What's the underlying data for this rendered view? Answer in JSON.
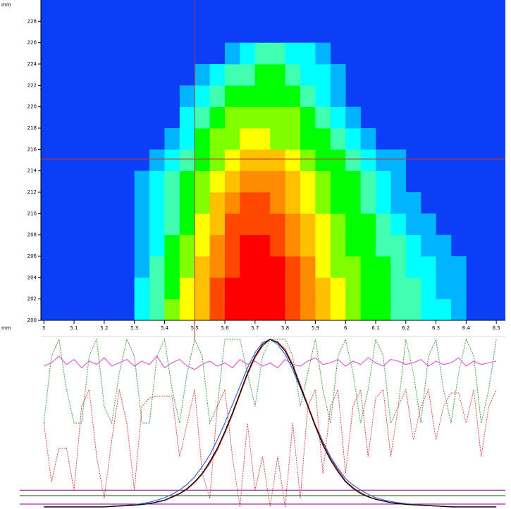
{
  "chart_data": [
    {
      "type": "heatmap",
      "x_unit": "mm",
      "y_unit": "mm",
      "xlim": [
        4.99,
        6.53
      ],
      "ylim": [
        200,
        230
      ],
      "xticks": [
        5,
        5.1,
        5.2,
        5.3,
        5.4,
        5.5,
        5.6,
        5.7,
        5.8,
        5.9,
        6,
        6.1,
        6.2,
        6.3,
        6.4,
        6.5
      ],
      "yticks": [
        200,
        202,
        204,
        206,
        208,
        210,
        212,
        214,
        216,
        218,
        220,
        222,
        224,
        226,
        228
      ],
      "background": "#0b3ff5",
      "colorscale": [
        "#0b3ff5",
        "#00b4ff",
        "#00ffff",
        "#40ffb0",
        "#00ff00",
        "#80ff00",
        "#ffff00",
        "#ffc000",
        "#ff8c00",
        "#ff4800",
        "#ff0000"
      ],
      "xbins": [
        5.3,
        5.35,
        5.4,
        5.45,
        5.5,
        5.55,
        5.6,
        5.65,
        5.7,
        5.75,
        5.8,
        5.85,
        5.9,
        5.95,
        6,
        6.05,
        6.1,
        6.15,
        6.2,
        6.25,
        6.3,
        6.35,
        6.4,
        6.45
      ],
      "ybins": [
        200,
        202,
        204,
        206,
        208,
        210,
        212,
        214,
        216,
        218,
        220,
        222,
        224,
        226
      ],
      "values": [
        [
          2,
          3,
          5,
          6,
          7,
          9,
          10,
          10,
          10,
          10,
          9,
          8,
          7,
          6,
          5,
          4,
          4,
          3,
          3,
          2,
          2,
          1,
          0
        ],
        [
          2,
          3,
          4,
          6,
          7,
          9,
          10,
          10,
          10,
          10,
          9,
          8,
          7,
          6,
          5,
          4,
          4,
          3,
          3,
          2,
          1,
          1,
          0
        ],
        [
          1,
          3,
          4,
          5,
          7,
          8,
          9,
          10,
          10,
          10,
          9,
          8,
          6,
          5,
          5,
          4,
          4,
          3,
          2,
          2,
          1,
          1,
          0
        ],
        [
          1,
          2,
          4,
          5,
          6,
          8,
          9,
          10,
          10,
          9,
          8,
          7,
          6,
          5,
          4,
          4,
          3,
          3,
          2,
          1,
          1,
          0,
          0
        ],
        [
          1,
          2,
          3,
          4,
          6,
          7,
          9,
          9,
          9,
          9,
          8,
          7,
          6,
          5,
          4,
          4,
          3,
          2,
          1,
          1,
          0,
          0,
          0
        ],
        [
          1,
          2,
          3,
          4,
          5,
          7,
          8,
          9,
          9,
          8,
          7,
          6,
          5,
          4,
          4,
          3,
          2,
          1,
          1,
          0,
          0,
          0,
          0
        ],
        [
          1,
          2,
          3,
          4,
          5,
          6,
          7,
          8,
          8,
          8,
          7,
          6,
          5,
          4,
          4,
          3,
          2,
          1,
          0,
          0,
          0,
          0,
          0
        ],
        [
          0,
          1,
          2,
          3,
          4,
          5,
          6,
          7,
          7,
          7,
          6,
          5,
          4,
          4,
          3,
          2,
          1,
          1,
          0,
          0,
          0,
          0,
          0
        ],
        [
          0,
          0,
          1,
          2,
          4,
          5,
          5,
          6,
          6,
          5,
          5,
          4,
          4,
          3,
          2,
          1,
          0,
          0,
          0,
          0,
          0,
          0,
          0
        ],
        [
          0,
          0,
          0,
          2,
          3,
          4,
          5,
          5,
          5,
          5,
          5,
          4,
          3,
          2,
          1,
          0,
          0,
          0,
          0,
          0,
          0,
          0,
          0
        ],
        [
          0,
          0,
          0,
          1,
          2,
          3,
          4,
          4,
          4,
          4,
          4,
          3,
          2,
          1,
          0,
          0,
          0,
          0,
          0,
          0,
          0,
          0,
          0
        ],
        [
          0,
          0,
          0,
          0,
          1,
          2,
          3,
          3,
          4,
          4,
          3,
          2,
          2,
          1,
          0,
          0,
          0,
          0,
          0,
          0,
          0,
          0,
          0
        ],
        [
          0,
          0,
          0,
          0,
          0,
          0,
          1,
          2,
          3,
          3,
          2,
          2,
          1,
          0,
          0,
          0,
          0,
          0,
          0,
          0,
          0,
          0,
          0
        ]
      ],
      "cursor": {
        "x": 5.5,
        "y": 215.1,
        "color": "#c03030"
      }
    },
    {
      "type": "line",
      "xlim": [
        4.99,
        6.53
      ],
      "ylim": [
        0,
        1
      ],
      "x": [
        5,
        5.025,
        5.05,
        5.075,
        5.1,
        5.125,
        5.15,
        5.175,
        5.2,
        5.225,
        5.25,
        5.275,
        5.3,
        5.325,
        5.35,
        5.375,
        5.4,
        5.425,
        5.45,
        5.475,
        5.5,
        5.525,
        5.55,
        5.575,
        5.6,
        5.625,
        5.65,
        5.675,
        5.7,
        5.725,
        5.75,
        5.775,
        5.8,
        5.825,
        5.85,
        5.875,
        5.9,
        5.925,
        5.95,
        5.975,
        6,
        6.025,
        6.05,
        6.075,
        6.1,
        6.125,
        6.15,
        6.175,
        6.2,
        6.225,
        6.25,
        6.275,
        6.3,
        6.325,
        6.35,
        6.375,
        6.4,
        6.425,
        6.45,
        6.475,
        6.5
      ],
      "hlines": [
        {
          "value": 0.1,
          "color": "#800080"
        },
        {
          "value": 0.067,
          "color": "#006000"
        },
        {
          "value": 0.017,
          "color": "#800080"
        }
      ],
      "series": [
        {
          "color": "#3a9a3a",
          "dashed": true,
          "values": [
            0.5,
            0.9,
            1,
            0.7,
            0.5,
            0.5,
            0.9,
            1,
            0.6,
            0.5,
            0.8,
            1,
            0.9,
            0.5,
            0.5,
            0.9,
            1,
            0.7,
            0.5,
            0.8,
            1,
            0.9,
            0.5,
            0.6,
            1,
            1,
            1,
            0.8,
            0.6,
            0.9,
            1,
            1,
            1,
            0.9,
            0.6,
            0.8,
            1,
            0.7,
            0.5,
            0.9,
            1,
            0.8,
            0.5,
            0.7,
            1,
            0.9,
            0.5,
            0.6,
            1,
            0.8,
            0.5,
            0.9,
            1,
            0.7,
            0.5,
            0.8,
            1,
            0.9,
            0.5,
            0.7,
            1
          ]
        },
        {
          "color": "#e04040",
          "dashed": true,
          "values": [
            0.5,
            0.15,
            0.35,
            0.35,
            0.1,
            0.6,
            0.7,
            0.3,
            0.05,
            0.4,
            0.7,
            0.5,
            0.1,
            0.6,
            0.65,
            0.66,
            0.66,
            0.66,
            0.3,
            0.5,
            0.7,
            0.2,
            0.05,
            0.6,
            0.7,
            0.3,
            0,
            0.5,
            0.1,
            0.3,
            0,
            0.3,
            0,
            0.5,
            0.05,
            0.6,
            0.7,
            0.2,
            0.6,
            0.7,
            0.2,
            0.6,
            0.7,
            0.3,
            0.65,
            0.7,
            0.3,
            0.6,
            0.7,
            0.4,
            0.6,
            0.7,
            0.4,
            0.6,
            0.68,
            0.68,
            0.5,
            0.7,
            0.3,
            0.6,
            0.7
          ]
        },
        {
          "color": "#e060e0",
          "dashed": false,
          "values": [
            0.84,
            0.86,
            0.9,
            0.85,
            0.88,
            0.83,
            0.87,
            0.85,
            0.89,
            0.84,
            0.86,
            0.88,
            0.84,
            0.87,
            0.85,
            0.9,
            0.83,
            0.86,
            0.88,
            0.84,
            0.82,
            0.85,
            0.87,
            0.84,
            0.86,
            0.83,
            0.88,
            0.85,
            0.87,
            0.84,
            0.86,
            0.83,
            0.88,
            0.85,
            0.84,
            0.87,
            0.89,
            0.85,
            0.86,
            0.88,
            0.84,
            0.87,
            0.85,
            0.89,
            0.86,
            0.84,
            0.88,
            0.87,
            0.85,
            0.86,
            0.88,
            0.84,
            0.87,
            0.85,
            0.86,
            0.89,
            0.84,
            0.87,
            0.85,
            0.86,
            0.87
          ]
        },
        {
          "color": "#4060e0",
          "dashed": false,
          "values": [
            0,
            0,
            0,
            0,
            0,
            0,
            0,
            0,
            0,
            0.004,
            0.007,
            0.01,
            0.014,
            0.02,
            0.028,
            0.04,
            0.055,
            0.075,
            0.1,
            0.135,
            0.18,
            0.24,
            0.31,
            0.4,
            0.5,
            0.61,
            0.72,
            0.83,
            0.92,
            0.98,
            1,
            0.97,
            0.91,
            0.82,
            0.71,
            0.6,
            0.49,
            0.39,
            0.3,
            0.23,
            0.17,
            0.13,
            0.1,
            0.075,
            0.055,
            0.042,
            0.032,
            0.025,
            0.02,
            0.015,
            0.012,
            0.009,
            0.006,
            0.004,
            0.002,
            0,
            0,
            0,
            0,
            0,
            0
          ]
        },
        {
          "color": "#c03020",
          "dashed": false,
          "values": [
            0,
            0,
            0,
            0,
            0,
            0,
            0,
            0,
            0,
            0.003,
            0.005,
            0.007,
            0.01,
            0.014,
            0.019,
            0.028,
            0.038,
            0.057,
            0.077,
            0.105,
            0.145,
            0.195,
            0.26,
            0.34,
            0.44,
            0.55,
            0.67,
            0.79,
            0.89,
            0.96,
            1,
            0.985,
            0.94,
            0.85,
            0.73,
            0.61,
            0.49,
            0.38,
            0.29,
            0.22,
            0.155,
            0.115,
            0.085,
            0.062,
            0.047,
            0.036,
            0.026,
            0.02,
            0.015,
            0.012,
            0.01,
            0.007,
            0.005,
            0.003,
            0,
            0,
            0,
            0,
            0,
            0,
            0
          ]
        },
        {
          "color": "#000000",
          "dashed": false,
          "values": [
            0,
            0,
            0,
            0,
            0,
            0,
            0,
            0,
            0,
            0.003,
            0.005,
            0.007,
            0.01,
            0.015,
            0.02,
            0.03,
            0.04,
            0.06,
            0.08,
            0.11,
            0.15,
            0.2,
            0.27,
            0.35,
            0.45,
            0.56,
            0.68,
            0.8,
            0.9,
            0.97,
            1,
            0.98,
            0.93,
            0.84,
            0.72,
            0.6,
            0.48,
            0.37,
            0.28,
            0.21,
            0.15,
            0.11,
            0.08,
            0.06,
            0.045,
            0.035,
            0.025,
            0.02,
            0.015,
            0.012,
            0.01,
            0.007,
            0.005,
            0.003,
            0,
            0,
            0,
            0,
            0,
            0,
            0
          ]
        }
      ]
    }
  ]
}
